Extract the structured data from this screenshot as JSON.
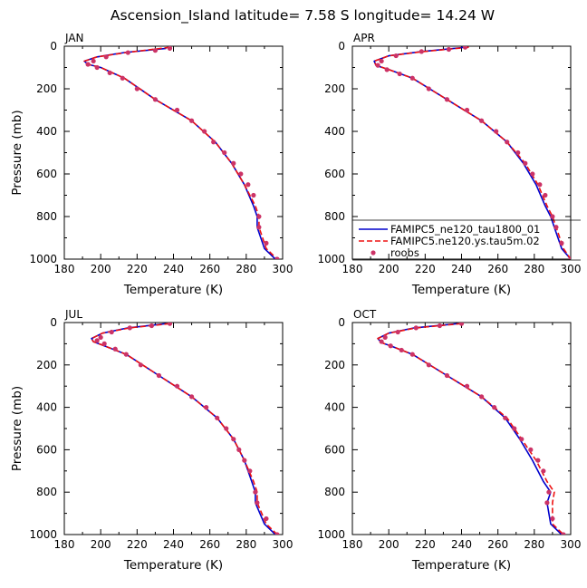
{
  "page_title": "Ascension_Island   latitude=  7.58 S longitude=  14.24 W",
  "colors": {
    "series_1": "#0000cc",
    "series_2": "#ee1111",
    "series_3": "#cc3366",
    "axes": "#000000",
    "background": "#ffffff"
  },
  "legend": {
    "placement": "inside APR panel, bottom-right",
    "items": [
      {
        "label": "FAMIPC5_ne120_tau1800_01",
        "style": "solid line",
        "color": "#0000cc"
      },
      {
        "label": "FAMIPC5.ne120.ys.tau5m.02",
        "style": "dashed line",
        "color": "#ee1111"
      },
      {
        "label": "roobs",
        "style": "dots",
        "color": "#cc3366"
      }
    ]
  },
  "chart_data": [
    {
      "type": "line",
      "title": "JAN",
      "xlabel": "Temperature (K)",
      "ylabel": "Pressure (mb)",
      "xlim": [
        180,
        300
      ],
      "ylim": [
        1000,
        0
      ],
      "y_inverted": true,
      "xticks": [
        "180",
        "200",
        "220",
        "240",
        "260",
        "280",
        "300"
      ],
      "yticks": [
        "0",
        "200",
        "400",
        "600",
        "800",
        "1000"
      ],
      "show_xlabel": true,
      "show_ylabel": true,
      "series": [
        {
          "name": "FAMIPC5_ne120_tau1800_01",
          "style": "solid",
          "color": "#0000cc",
          "x": [
            236,
            213,
            198,
            191,
            193,
            200,
            213,
            230,
            250,
            263,
            272,
            279,
            284,
            286,
            286,
            290,
            296
          ],
          "y": [
            10,
            30,
            50,
            70,
            85,
            100,
            150,
            250,
            350,
            450,
            550,
            650,
            750,
            800,
            850,
            950,
            1000
          ]
        },
        {
          "name": "FAMIPC5.ne120.ys.tau5m.02",
          "style": "dashed",
          "color": "#ee1111",
          "x": [
            238,
            214,
            198,
            191,
            193,
            200,
            213,
            230,
            250,
            263,
            272,
            279,
            285,
            287,
            287,
            291,
            297
          ],
          "y": [
            5,
            30,
            50,
            70,
            85,
            100,
            150,
            250,
            350,
            450,
            550,
            650,
            750,
            800,
            850,
            950,
            1000
          ]
        },
        {
          "name": "roobs",
          "style": "points",
          "color": "#cc3366",
          "x": [
            238,
            230,
            215,
            203,
            196,
            193,
            198,
            205,
            212,
            220,
            230,
            242,
            250,
            257,
            262,
            268,
            273,
            277,
            281,
            284,
            287,
            287,
            291,
            297
          ],
          "y": [
            10,
            20,
            30,
            50,
            70,
            85,
            100,
            125,
            150,
            200,
            250,
            300,
            350,
            400,
            450,
            500,
            550,
            600,
            650,
            700,
            800,
            850,
            925,
            1000
          ]
        }
      ]
    },
    {
      "type": "line",
      "title": "APR",
      "xlabel": "Temperature (K)",
      "ylabel": "Pressure (mb)",
      "xlim": [
        180,
        300
      ],
      "ylim": [
        1000,
        0
      ],
      "y_inverted": true,
      "xticks": [
        "180",
        "200",
        "220",
        "240",
        "260",
        "280",
        "300"
      ],
      "yticks": [
        "0",
        "200",
        "400",
        "600",
        "800",
        "1000"
      ],
      "show_xlabel": true,
      "show_ylabel": false,
      "series": [
        {
          "name": "FAMIPC5_ne120_tau1800_01",
          "style": "solid",
          "color": "#0000cc",
          "x": [
            242,
            218,
            200,
            192,
            193,
            200,
            213,
            232,
            251,
            265,
            274,
            281,
            286,
            289,
            291,
            295,
            300
          ],
          "y": [
            5,
            25,
            45,
            70,
            90,
            110,
            150,
            250,
            350,
            450,
            550,
            650,
            750,
            800,
            850,
            950,
            1000
          ]
        },
        {
          "name": "FAMIPC5.ne120.ys.tau5m.02",
          "style": "dashed",
          "color": "#ee1111",
          "x": [
            244,
            219,
            200,
            192,
            193,
            200,
            213,
            232,
            251,
            265,
            275,
            282,
            287,
            290,
            292,
            296,
            300
          ],
          "y": [
            5,
            25,
            45,
            70,
            90,
            110,
            150,
            250,
            350,
            450,
            550,
            650,
            750,
            800,
            850,
            950,
            1000
          ]
        },
        {
          "name": "roobs",
          "style": "points",
          "color": "#cc3366",
          "x": [
            242,
            233,
            218,
            204,
            196,
            194,
            199,
            206,
            213,
            222,
            232,
            243,
            251,
            259,
            265,
            271,
            275,
            279,
            283,
            286,
            290,
            292,
            295,
            300
          ],
          "y": [
            5,
            15,
            25,
            45,
            70,
            90,
            110,
            130,
            150,
            200,
            250,
            300,
            350,
            400,
            450,
            500,
            550,
            600,
            650,
            700,
            800,
            850,
            925,
            1000
          ]
        }
      ]
    },
    {
      "type": "line",
      "title": "JUL",
      "xlabel": "Temperature (K)",
      "ylabel": "Pressure (mb)",
      "xlim": [
        180,
        300
      ],
      "ylim": [
        1000,
        0
      ],
      "y_inverted": true,
      "xticks": [
        "180",
        "200",
        "220",
        "240",
        "260",
        "280",
        "300"
      ],
      "yticks": [
        "0",
        "200",
        "400",
        "600",
        "800",
        "1000"
      ],
      "show_xlabel": true,
      "show_ylabel": true,
      "series": [
        {
          "name": "FAMIPC5_ne120_tau1800_01",
          "style": "solid",
          "color": "#0000cc",
          "x": [
            236,
            215,
            201,
            195,
            196,
            202,
            214,
            232,
            250,
            264,
            273,
            279,
            283,
            285,
            285,
            290,
            296
          ],
          "y": [
            5,
            25,
            50,
            75,
            90,
            110,
            150,
            250,
            350,
            450,
            550,
            650,
            750,
            800,
            850,
            950,
            1000
          ]
        },
        {
          "name": "FAMIPC5.ne120.ys.tau5m.02",
          "style": "dashed",
          "color": "#ee1111",
          "x": [
            238,
            216,
            201,
            195,
            196,
            202,
            214,
            232,
            250,
            264,
            273,
            279,
            284,
            286,
            286,
            291,
            297
          ],
          "y": [
            5,
            25,
            50,
            75,
            90,
            110,
            150,
            250,
            350,
            450,
            550,
            650,
            750,
            800,
            850,
            950,
            1000
          ]
        },
        {
          "name": "roobs",
          "style": "points",
          "color": "#cc3366",
          "x": [
            238,
            228,
            216,
            206,
            200,
            198,
            202,
            208,
            214,
            222,
            232,
            242,
            250,
            258,
            264,
            269,
            273,
            276,
            279,
            282,
            285,
            286,
            291,
            297
          ],
          "y": [
            5,
            15,
            25,
            45,
            70,
            85,
            100,
            125,
            150,
            200,
            250,
            300,
            350,
            400,
            450,
            500,
            550,
            600,
            650,
            700,
            800,
            850,
            925,
            1000
          ]
        }
      ]
    },
    {
      "type": "line",
      "title": "OCT",
      "xlabel": "Temperature (K)",
      "ylabel": "Pressure (mb)",
      "xlim": [
        180,
        300
      ],
      "ylim": [
        1000,
        0
      ],
      "y_inverted": true,
      "xticks": [
        "180",
        "200",
        "220",
        "240",
        "260",
        "280",
        "300"
      ],
      "yticks": [
        "0",
        "200",
        "400",
        "600",
        "800",
        "1000"
      ],
      "show_xlabel": true,
      "show_ylabel": false,
      "series": [
        {
          "name": "FAMIPC5_ne120_tau1800_01",
          "style": "solid",
          "color": "#0000cc",
          "x": [
            238,
            214,
            200,
            194,
            196,
            201,
            213,
            232,
            251,
            264,
            272,
            279,
            285,
            289,
            287,
            289,
            295
          ],
          "y": [
            5,
            25,
            50,
            75,
            95,
            110,
            150,
            250,
            350,
            450,
            550,
            650,
            750,
            800,
            850,
            950,
            1000
          ]
        },
        {
          "name": "FAMIPC5.ne120.ys.tau5m.02",
          "style": "dashed",
          "color": "#ee1111",
          "x": [
            240,
            215,
            200,
            194,
            196,
            201,
            213,
            232,
            251,
            265,
            273,
            281,
            287,
            291,
            290,
            290,
            296
          ],
          "y": [
            5,
            25,
            50,
            75,
            95,
            110,
            150,
            250,
            350,
            450,
            550,
            650,
            750,
            800,
            850,
            950,
            1000
          ]
        },
        {
          "name": "roobs",
          "style": "points",
          "color": "#cc3366",
          "x": [
            240,
            228,
            215,
            205,
            198,
            196,
            201,
            207,
            213,
            222,
            232,
            243,
            251,
            258,
            264,
            269,
            273,
            278,
            282,
            285,
            288,
            287,
            290,
            296
          ],
          "y": [
            5,
            15,
            25,
            45,
            70,
            90,
            110,
            130,
            150,
            200,
            250,
            300,
            350,
            400,
            450,
            500,
            550,
            600,
            650,
            700,
            800,
            850,
            925,
            1000
          ]
        }
      ]
    }
  ]
}
